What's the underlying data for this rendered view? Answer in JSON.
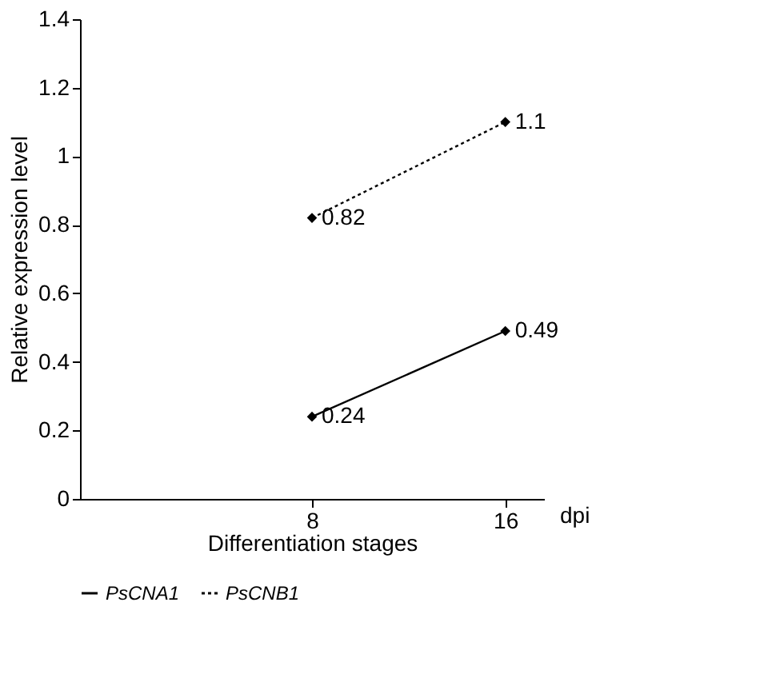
{
  "chart_data": {
    "type": "line",
    "xlabel": "Differentiation stages",
    "ylabel": "Relative expression level",
    "categories": [
      "8",
      "16"
    ],
    "series": [
      {
        "name": "PsCNA1",
        "color": "#000000",
        "values": [
          0.24,
          0.49
        ],
        "line_style": "solid"
      },
      {
        "name": "PsCNB1",
        "color": "#000000",
        "values": [
          0.82,
          1.1
        ],
        "line_style": "dotted"
      }
    ],
    "ylim": [
      0,
      1.4
    ],
    "yticks": [
      0,
      0.2,
      0.4,
      0.6,
      0.8,
      1,
      1.2,
      1.4
    ],
    "grid": false,
    "legend": "bottom",
    "marker": "diamond",
    "data_labels": true,
    "annotations": [
      "dpi"
    ]
  }
}
